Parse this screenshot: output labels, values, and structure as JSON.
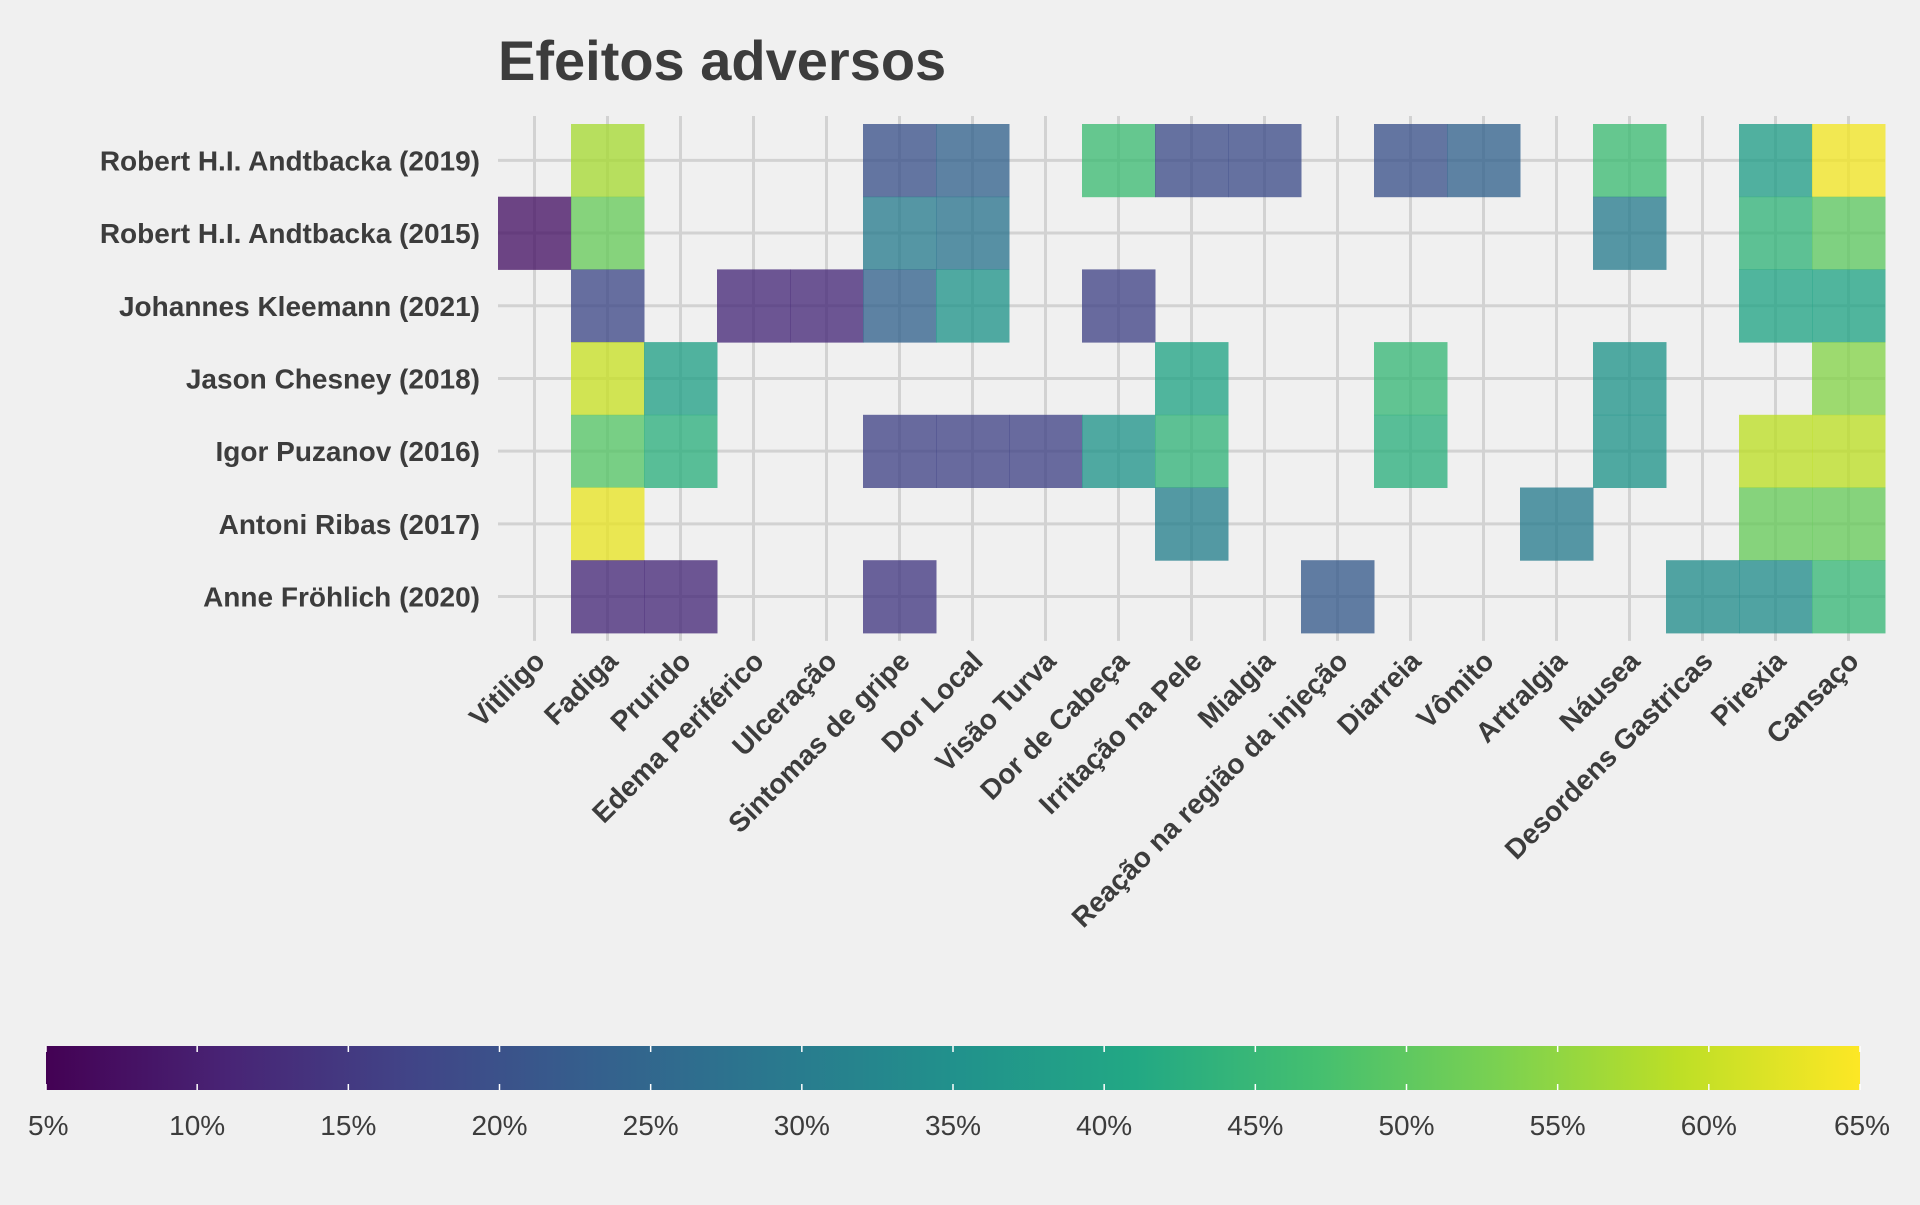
{
  "chart_data": {
    "type": "heatmap",
    "title": "Efeitos adversos",
    "xlabel": "",
    "ylabel": "",
    "x_categories": [
      "Vitiligo",
      "Fadiga",
      "Prurido",
      "Edema Periférico",
      "Ulceração",
      "Sintomas de gripe",
      "Dor Local",
      "Visão Turva",
      "Dor de Cabeça",
      "Irritação na Pele",
      "Mialgia",
      "Reação na região da injeção",
      "Diarreia",
      "Vômito",
      "Artralgia",
      "Náusea",
      "Desordens Gastricas",
      "Pirexia",
      "Cansaço"
    ],
    "y_categories": [
      "Robert H.I. Andtbacka (2019)",
      "Robert H.I. Andtbacka (2015)",
      "Johannes Kleemann (2021)",
      "Jason Chesney (2018)",
      "Igor Puzanov (2016)",
      "Antoni Ribas (2017)",
      "Anne Fröhlich (2020)"
    ],
    "value_unit": "%",
    "grid": true,
    "colorbar": {
      "colormap": "viridis",
      "range": [
        5,
        65
      ],
      "position": "bottom",
      "tick_labels": [
        "5%",
        "10%",
        "15%",
        "20%",
        "25%",
        "30%",
        "35%",
        "40%",
        "45%",
        "50%",
        "55%",
        "60%",
        "65%"
      ]
    },
    "cells": [
      {
        "row": "Robert H.I. Andtbacka (2019)",
        "col": "Fadiga",
        "value": 57
      },
      {
        "row": "Robert H.I. Andtbacka (2019)",
        "col": "Sintomas de gripe",
        "value": 20
      },
      {
        "row": "Robert H.I. Andtbacka (2019)",
        "col": "Dor Local",
        "value": 24
      },
      {
        "row": "Robert H.I. Andtbacka (2019)",
        "col": "Dor de Cabeça",
        "value": 46
      },
      {
        "row": "Robert H.I. Andtbacka (2019)",
        "col": "Irritação na Pele",
        "value": 19
      },
      {
        "row": "Robert H.I. Andtbacka (2019)",
        "col": "Mialgia",
        "value": 19
      },
      {
        "row": "Robert H.I. Andtbacka (2019)",
        "col": "Diarreia",
        "value": 20
      },
      {
        "row": "Robert H.I. Andtbacka (2019)",
        "col": "Vômito",
        "value": 24
      },
      {
        "row": "Robert H.I. Andtbacka (2019)",
        "col": "Náusea",
        "value": 46
      },
      {
        "row": "Robert H.I. Andtbacka (2019)",
        "col": "Pirexia",
        "value": 38
      },
      {
        "row": "Robert H.I. Andtbacka (2019)",
        "col": "Cansaço",
        "value": 64
      },
      {
        "row": "Robert H.I. Andtbacka (2015)",
        "col": "Vitiligo",
        "value": 8
      },
      {
        "row": "Robert H.I. Andtbacka (2015)",
        "col": "Fadiga",
        "value": 51
      },
      {
        "row": "Robert H.I. Andtbacka (2015)",
        "col": "Sintomas de gripe",
        "value": 30
      },
      {
        "row": "Robert H.I. Andtbacka (2015)",
        "col": "Dor Local",
        "value": 28
      },
      {
        "row": "Robert H.I. Andtbacka (2015)",
        "col": "Náusea",
        "value": 30
      },
      {
        "row": "Robert H.I. Andtbacka (2015)",
        "col": "Pirexia",
        "value": 44
      },
      {
        "row": "Robert H.I. Andtbacka (2015)",
        "col": "Cansaço",
        "value": 50
      },
      {
        "row": "Johannes Kleemann (2021)",
        "col": "Fadiga",
        "value": 18
      },
      {
        "row": "Johannes Kleemann (2021)",
        "col": "Edema Periférico",
        "value": 12
      },
      {
        "row": "Johannes Kleemann (2021)",
        "col": "Ulceração",
        "value": 12
      },
      {
        "row": "Johannes Kleemann (2021)",
        "col": "Sintomas de gripe",
        "value": 24
      },
      {
        "row": "Johannes Kleemann (2021)",
        "col": "Dor Local",
        "value": 36
      },
      {
        "row": "Johannes Kleemann (2021)",
        "col": "Dor de Cabeça",
        "value": 17
      },
      {
        "row": "Johannes Kleemann (2021)",
        "col": "Pirexia",
        "value": 40
      },
      {
        "row": "Johannes Kleemann (2021)",
        "col": "Cansaço",
        "value": 40
      },
      {
        "row": "Jason Chesney (2018)",
        "col": "Fadiga",
        "value": 60
      },
      {
        "row": "Jason Chesney (2018)",
        "col": "Prurido",
        "value": 39
      },
      {
        "row": "Jason Chesney (2018)",
        "col": "Irritação na Pele",
        "value": 40
      },
      {
        "row": "Jason Chesney (2018)",
        "col": "Diarreia",
        "value": 45
      },
      {
        "row": "Jason Chesney (2018)",
        "col": "Náusea",
        "value": 36
      },
      {
        "row": "Jason Chesney (2018)",
        "col": "Cansaço",
        "value": 54
      },
      {
        "row": "Igor Puzanov (2016)",
        "col": "Fadiga",
        "value": 49
      },
      {
        "row": "Igor Puzanov (2016)",
        "col": "Prurido",
        "value": 43
      },
      {
        "row": "Igor Puzanov (2016)",
        "col": "Sintomas de gripe",
        "value": 17
      },
      {
        "row": "Igor Puzanov (2016)",
        "col": "Dor Local",
        "value": 17
      },
      {
        "row": "Igor Puzanov (2016)",
        "col": "Visão Turva",
        "value": 17
      },
      {
        "row": "Igor Puzanov (2016)",
        "col": "Dor de Cabeça",
        "value": 36
      },
      {
        "row": "Igor Puzanov (2016)",
        "col": "Irritação na Pele",
        "value": 44
      },
      {
        "row": "Igor Puzanov (2016)",
        "col": "Diarreia",
        "value": 43
      },
      {
        "row": "Igor Puzanov (2016)",
        "col": "Náusea",
        "value": 36
      },
      {
        "row": "Igor Puzanov (2016)",
        "col": "Pirexia",
        "value": 59
      },
      {
        "row": "Igor Puzanov (2016)",
        "col": "Cansaço",
        "value": 59
      },
      {
        "row": "Antoni Ribas (2017)",
        "col": "Fadiga",
        "value": 63
      },
      {
        "row": "Antoni Ribas (2017)",
        "col": "Irritação na Pele",
        "value": 31
      },
      {
        "row": "Antoni Ribas (2017)",
        "col": "Artralgia",
        "value": 30
      },
      {
        "row": "Antoni Ribas (2017)",
        "col": "Pirexia",
        "value": 51
      },
      {
        "row": "Antoni Ribas (2017)",
        "col": "Cansaço",
        "value": 51
      },
      {
        "row": "Anne Fröhlich (2020)",
        "col": "Fadiga",
        "value": 12
      },
      {
        "row": "Anne Fröhlich (2020)",
        "col": "Prurido",
        "value": 12
      },
      {
        "row": "Anne Fröhlich (2020)",
        "col": "Sintomas de gripe",
        "value": 15
      },
      {
        "row": "Anne Fröhlich (2020)",
        "col": "Reação na região da injeção",
        "value": 22
      },
      {
        "row": "Anne Fröhlich (2020)",
        "col": "Desordens Gastricas",
        "value": 34
      },
      {
        "row": "Anne Fröhlich (2020)",
        "col": "Pirexia",
        "value": 34
      },
      {
        "row": "Anne Fröhlich (2020)",
        "col": "Cansaço",
        "value": 45
      }
    ]
  }
}
